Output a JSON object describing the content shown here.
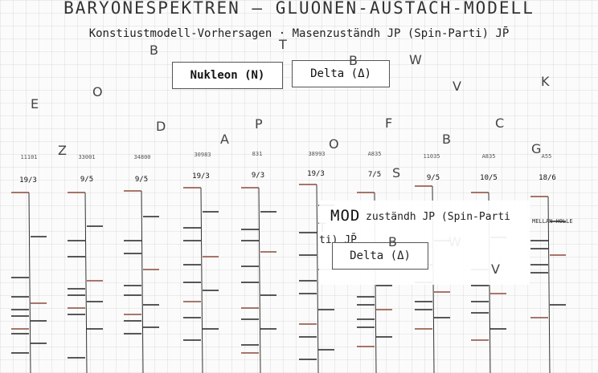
{
  "title": "BARYONESPEKTREN — GLUONEN-AUSTACH-MODELL",
  "subtitle": "Konstiustmodell-Vorhersagen · Masenzuständh JP (Spin-Parti) JP̄",
  "buttons": {
    "nucleon": "Nukleon (N)",
    "delta": "Delta (Δ)"
  },
  "floating_letters": [
    "E",
    "O",
    "B",
    "Z",
    "D",
    "A",
    "P",
    "T",
    "O",
    "B",
    "F",
    "W",
    "V",
    "B",
    "C",
    "K",
    "G",
    "S",
    "T",
    "B",
    "W",
    "V"
  ],
  "columns": [
    {
      "code": "11101",
      "spin": "19/3"
    },
    {
      "code": "33001",
      "spin": "9/5"
    },
    {
      "code": "34800",
      "spin": "9/5"
    },
    {
      "code": "30983",
      "spin": "19/3"
    },
    {
      "code": "831",
      "spin": "9/3"
    },
    {
      "code": "38993",
      "spin": "19/3"
    },
    {
      "code": "A835",
      "spin": "7/5"
    },
    {
      "code": "11035",
      "spin": "9/5"
    },
    {
      "code": "A835",
      "spin": "10/5"
    },
    {
      "code": "A55",
      "spin": "18/6"
    }
  ],
  "overlay": {
    "title": "MOD",
    "subtitle_part1": "zuständh JP (Spin-Parti",
    "subtitle_part2": "ti) JP̄",
    "delta_button": "Delta (Δ)",
    "letter_b": "B",
    "letter_w": "W",
    "letter_v": "V",
    "letter_t": "T"
  },
  "side_label": "MELLAN HOLLE",
  "colors": {
    "grid": "#e6e6e6",
    "level_dark": "#222222",
    "level_accent": "#8b4a3a"
  }
}
